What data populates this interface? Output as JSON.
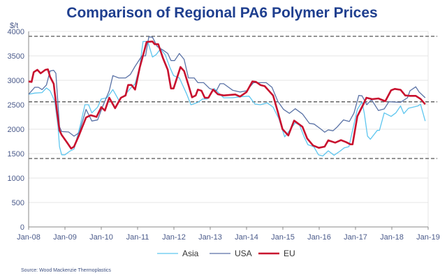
{
  "chart_data": {
    "type": "line",
    "title": "Comparison of Regional PA6 Polymer Prices",
    "ylabel": "$/t",
    "xlabel": "",
    "ylim": [
      0,
      4000
    ],
    "xlim": [
      2008,
      2019
    ],
    "yticks": [
      "0",
      "500",
      "1000",
      "1500",
      "2000",
      "2500",
      "3000",
      "3500",
      "4000"
    ],
    "xticks": [
      "Jan-08",
      "Jan-09",
      "Jan-10",
      "Jan-11",
      "Jan-12",
      "Jan-13",
      "Jan-14",
      "Jan-15",
      "Jan-16",
      "Jan-17",
      "Jan-18",
      "Jan-19"
    ],
    "grid": true,
    "reference_lines": [
      3900,
      2560,
      1400
    ],
    "legend_position": "bottom",
    "source": "Source:  Wood Mackenzie Thermoplastics",
    "series": [
      {
        "name": "Asia",
        "color": "#5ec6ef",
        "width": 1.3,
        "points": [
          [
            2008.0,
            2714
          ],
          [
            2008.17,
            2738
          ],
          [
            2008.37,
            2748
          ],
          [
            2008.49,
            2843
          ],
          [
            2008.59,
            2786
          ],
          [
            2008.72,
            2571
          ],
          [
            2008.81,
            2048
          ],
          [
            2008.85,
            1643
          ],
          [
            2008.91,
            1476
          ],
          [
            2009.0,
            1476
          ],
          [
            2009.13,
            1548
          ],
          [
            2009.25,
            1595
          ],
          [
            2009.42,
            2071
          ],
          [
            2009.55,
            2500
          ],
          [
            2009.65,
            2500
          ],
          [
            2009.74,
            2333
          ],
          [
            2009.9,
            2452
          ],
          [
            2010.0,
            2619
          ],
          [
            2010.16,
            2643
          ],
          [
            2010.32,
            2810
          ],
          [
            2010.48,
            2595
          ],
          [
            2010.64,
            2690
          ],
          [
            2010.8,
            2833
          ],
          [
            2010.93,
            2929
          ],
          [
            2011.06,
            3286
          ],
          [
            2011.15,
            3795
          ],
          [
            2011.28,
            3795
          ],
          [
            2011.41,
            3476
          ],
          [
            2011.51,
            3524
          ],
          [
            2011.63,
            3643
          ],
          [
            2011.76,
            3524
          ],
          [
            2011.89,
            3262
          ],
          [
            2011.99,
            3095
          ],
          [
            2012.15,
            3048
          ],
          [
            2012.34,
            2738
          ],
          [
            2012.47,
            2500
          ],
          [
            2012.66,
            2548
          ],
          [
            2012.79,
            2619
          ],
          [
            2012.92,
            2619
          ],
          [
            2013.11,
            2833
          ],
          [
            2013.27,
            2714
          ],
          [
            2013.37,
            2643
          ],
          [
            2013.62,
            2643
          ],
          [
            2013.88,
            2667
          ],
          [
            2014.07,
            2676
          ],
          [
            2014.23,
            2514
          ],
          [
            2014.38,
            2500
          ],
          [
            2014.57,
            2538
          ],
          [
            2014.73,
            2452
          ],
          [
            2014.89,
            2214
          ],
          [
            2015.05,
            1843
          ],
          [
            2015.21,
            2000
          ],
          [
            2015.34,
            2133
          ],
          [
            2015.46,
            2081
          ],
          [
            2015.59,
            1833
          ],
          [
            2015.69,
            1681
          ],
          [
            2015.85,
            1643
          ],
          [
            2015.98,
            1476
          ],
          [
            2016.1,
            1452
          ],
          [
            2016.25,
            1557
          ],
          [
            2016.41,
            1467
          ],
          [
            2016.57,
            1548
          ],
          [
            2016.69,
            1619
          ],
          [
            2016.82,
            1643
          ],
          [
            2016.92,
            1976
          ],
          [
            2017.05,
            2405
          ],
          [
            2017.18,
            2557
          ],
          [
            2017.24,
            2333
          ],
          [
            2017.33,
            1857
          ],
          [
            2017.41,
            1795
          ],
          [
            2017.6,
            1976
          ],
          [
            2017.66,
            1976
          ],
          [
            2017.79,
            2333
          ],
          [
            2017.98,
            2262
          ],
          [
            2018.11,
            2333
          ],
          [
            2018.24,
            2476
          ],
          [
            2018.33,
            2319
          ],
          [
            2018.46,
            2429
          ],
          [
            2018.72,
            2476
          ],
          [
            2018.79,
            2510
          ],
          [
            2018.92,
            2167
          ]
        ]
      },
      {
        "name": "USA",
        "color": "#5a72a6",
        "width": 1.3,
        "points": [
          [
            2008.0,
            2714
          ],
          [
            2008.17,
            2857
          ],
          [
            2008.27,
            2857
          ],
          [
            2008.37,
            2810
          ],
          [
            2008.49,
            2905
          ],
          [
            2008.59,
            3190
          ],
          [
            2008.69,
            3205
          ],
          [
            2008.75,
            3143
          ],
          [
            2008.85,
            2048
          ],
          [
            2008.91,
            1952
          ],
          [
            2009.1,
            1943
          ],
          [
            2009.25,
            1857
          ],
          [
            2009.39,
            1929
          ],
          [
            2009.58,
            2405
          ],
          [
            2009.74,
            2167
          ],
          [
            2009.9,
            2190
          ],
          [
            2010.03,
            2452
          ],
          [
            2010.22,
            2786
          ],
          [
            2010.32,
            3095
          ],
          [
            2010.48,
            3048
          ],
          [
            2010.67,
            3048
          ],
          [
            2010.8,
            3119
          ],
          [
            2010.93,
            3286
          ],
          [
            2011.12,
            3500
          ],
          [
            2011.22,
            3500
          ],
          [
            2011.31,
            3890
          ],
          [
            2011.41,
            3881
          ],
          [
            2011.54,
            3690
          ],
          [
            2011.7,
            3619
          ],
          [
            2011.83,
            3548
          ],
          [
            2011.92,
            3405
          ],
          [
            2012.02,
            3405
          ],
          [
            2012.15,
            3548
          ],
          [
            2012.28,
            3429
          ],
          [
            2012.4,
            3048
          ],
          [
            2012.56,
            3048
          ],
          [
            2012.66,
            2952
          ],
          [
            2012.82,
            2952
          ],
          [
            2012.98,
            2833
          ],
          [
            2013.17,
            2786
          ],
          [
            2013.27,
            2930
          ],
          [
            2013.37,
            2930
          ],
          [
            2013.62,
            2795
          ],
          [
            2013.82,
            2760
          ],
          [
            2014.0,
            2785
          ],
          [
            2014.19,
            2952
          ],
          [
            2014.38,
            2952
          ],
          [
            2014.54,
            2952
          ],
          [
            2014.7,
            2857
          ],
          [
            2014.86,
            2571
          ],
          [
            2015.02,
            2405
          ],
          [
            2015.18,
            2324
          ],
          [
            2015.34,
            2419
          ],
          [
            2015.54,
            2310
          ],
          [
            2015.73,
            2119
          ],
          [
            2015.86,
            2105
          ],
          [
            2016.05,
            2000
          ],
          [
            2016.15,
            1938
          ],
          [
            2016.25,
            1986
          ],
          [
            2016.38,
            1967
          ],
          [
            2016.5,
            2048
          ],
          [
            2016.67,
            2190
          ],
          [
            2016.83,
            2157
          ],
          [
            2016.96,
            2333
          ],
          [
            2017.09,
            2690
          ],
          [
            2017.18,
            2681
          ],
          [
            2017.31,
            2500
          ],
          [
            2017.44,
            2605
          ],
          [
            2017.63,
            2381
          ],
          [
            2017.79,
            2414
          ],
          [
            2017.92,
            2562
          ],
          [
            2018.24,
            2548
          ],
          [
            2018.43,
            2643
          ],
          [
            2018.5,
            2786
          ],
          [
            2018.66,
            2867
          ],
          [
            2018.75,
            2762
          ],
          [
            2018.92,
            2643
          ]
        ]
      },
      {
        "name": "EU",
        "color": "#c8102e",
        "width": 2.6,
        "points": [
          [
            2008.0,
            2976
          ],
          [
            2008.08,
            2967
          ],
          [
            2008.14,
            3167
          ],
          [
            2008.24,
            3214
          ],
          [
            2008.33,
            3143
          ],
          [
            2008.46,
            3214
          ],
          [
            2008.53,
            3224
          ],
          [
            2008.59,
            3071
          ],
          [
            2008.69,
            2929
          ],
          [
            2008.78,
            2357
          ],
          [
            2008.85,
            1976
          ],
          [
            2008.91,
            1881
          ],
          [
            2009.07,
            1714
          ],
          [
            2009.17,
            1605
          ],
          [
            2009.25,
            1643
          ],
          [
            2009.39,
            1881
          ],
          [
            2009.58,
            2238
          ],
          [
            2009.71,
            2286
          ],
          [
            2009.87,
            2252
          ],
          [
            2010.0,
            2452
          ],
          [
            2010.1,
            2381
          ],
          [
            2010.22,
            2643
          ],
          [
            2010.38,
            2429
          ],
          [
            2010.54,
            2643
          ],
          [
            2010.67,
            2690
          ],
          [
            2010.74,
            2905
          ],
          [
            2010.83,
            2905
          ],
          [
            2010.93,
            2810
          ],
          [
            2011.06,
            3262
          ],
          [
            2011.25,
            3786
          ],
          [
            2011.41,
            3795
          ],
          [
            2011.47,
            3738
          ],
          [
            2011.57,
            3738
          ],
          [
            2011.7,
            3452
          ],
          [
            2011.83,
            3214
          ],
          [
            2011.92,
            2833
          ],
          [
            2011.99,
            2833
          ],
          [
            2012.18,
            3271
          ],
          [
            2012.28,
            3190
          ],
          [
            2012.4,
            2905
          ],
          [
            2012.5,
            2652
          ],
          [
            2012.6,
            2690
          ],
          [
            2012.66,
            2810
          ],
          [
            2012.76,
            2786
          ],
          [
            2012.85,
            2643
          ],
          [
            2012.95,
            2643
          ],
          [
            2013.08,
            2810
          ],
          [
            2013.21,
            2714
          ],
          [
            2013.37,
            2690
          ],
          [
            2013.69,
            2710
          ],
          [
            2013.82,
            2667
          ],
          [
            2014.0,
            2760
          ],
          [
            2014.16,
            2976
          ],
          [
            2014.26,
            2967
          ],
          [
            2014.38,
            2905
          ],
          [
            2014.5,
            2880
          ],
          [
            2014.73,
            2690
          ],
          [
            2014.86,
            2357
          ],
          [
            2014.99,
            2000
          ],
          [
            2015.15,
            1871
          ],
          [
            2015.31,
            2176
          ],
          [
            2015.54,
            2048
          ],
          [
            2015.67,
            1810
          ],
          [
            2015.83,
            1667
          ],
          [
            2015.99,
            1619
          ],
          [
            2016.15,
            1643
          ],
          [
            2016.25,
            1771
          ],
          [
            2016.44,
            1724
          ],
          [
            2016.6,
            1776
          ],
          [
            2016.73,
            1738
          ],
          [
            2016.86,
            1690
          ],
          [
            2016.92,
            1690
          ],
          [
            2017.05,
            2262
          ],
          [
            2017.21,
            2500
          ],
          [
            2017.3,
            2643
          ],
          [
            2017.46,
            2614
          ],
          [
            2017.63,
            2628
          ],
          [
            2017.82,
            2571
          ],
          [
            2017.98,
            2795
          ],
          [
            2018.08,
            2824
          ],
          [
            2018.24,
            2805
          ],
          [
            2018.37,
            2690
          ],
          [
            2018.5,
            2681
          ],
          [
            2018.66,
            2681
          ],
          [
            2018.79,
            2619
          ],
          [
            2018.92,
            2510
          ]
        ]
      }
    ]
  }
}
